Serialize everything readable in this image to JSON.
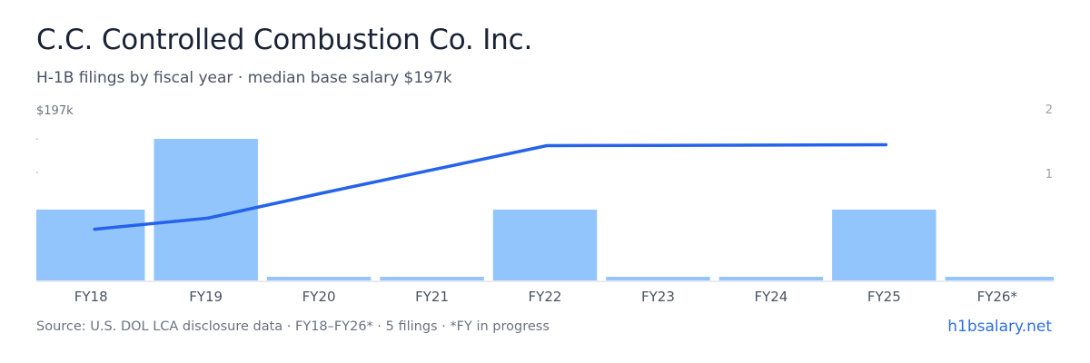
{
  "header": {
    "title": "C.C. Controlled Combustion Co. Inc.",
    "subtitle": "H-1B filings by fiscal year · median base salary $197k"
  },
  "footer": {
    "source": "Source: U.S. DOL LCA disclosure data · FY18–FY26* · 5 filings · *FY in progress",
    "brand": "h1bsalary.net"
  },
  "colors": {
    "bar": "#93c5fd",
    "line": "#2563eb",
    "axis_text": "#6b7280",
    "baseline": "#d1d5db"
  },
  "chart_data": {
    "type": "bar",
    "categories": [
      "FY18",
      "FY19",
      "FY20",
      "FY21",
      "FY22",
      "FY23",
      "FY24",
      "FY25",
      "FY26*"
    ],
    "series": [
      {
        "values": [
          1,
          2,
          0,
          0,
          1,
          0,
          0,
          1,
          0
        ]
      }
    ],
    "line_series": {
      "x": [
        "FY18",
        "FY19",
        "FY20",
        "FY21",
        "FY22",
        "FY23",
        "FY24",
        "FY25"
      ],
      "values": [
        0.6,
        0.73,
        1.02,
        1.3,
        1.58,
        1.583,
        1.586,
        1.59
      ]
    },
    "left_axis": {
      "label": "$197k"
    },
    "right_axis": {
      "ticks": [
        "1",
        "2"
      ],
      "range": [
        0,
        2
      ]
    },
    "ylim": [
      0,
      2
    ],
    "grid": false,
    "legend": "none"
  }
}
